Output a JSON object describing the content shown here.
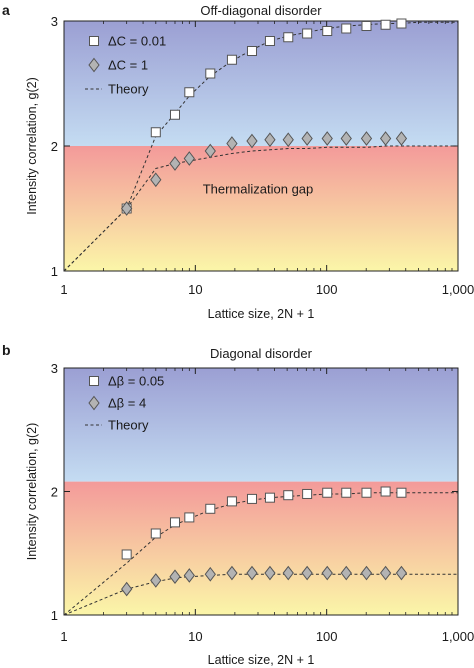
{
  "chart_data": [
    {
      "type": "scatter",
      "panel_label": "a",
      "title": "Off-diagonal disorder",
      "xlabel": "Lattice size, 2N + 1",
      "ylabel": "Intensity correlation, g(2)",
      "xscale": "log",
      "xlim": [
        1,
        1000
      ],
      "ylim": [
        1,
        3
      ],
      "xticks": [
        1,
        10,
        100,
        1000
      ],
      "xtick_labels": [
        "1",
        "10",
        "100",
        "1,000"
      ],
      "yticks": [
        1,
        2,
        3
      ],
      "ytick_labels": [
        "1",
        "2",
        "3"
      ],
      "shaded_regions": [
        {
          "y_from": 2,
          "y_to": 3,
          "colors": [
            "#c4dcf2",
            "#9b9fd3"
          ]
        },
        {
          "y_from": 1,
          "y_to": 2,
          "colors": [
            "#fbf6a8",
            "#f39a9a"
          ],
          "label": "Thermalization gap"
        }
      ],
      "legend_position": "top-left",
      "series": [
        {
          "name": "ΔC = 0.01",
          "marker": "square",
          "x": [
            3,
            5,
            7,
            9,
            13,
            19,
            27,
            37,
            51,
            71,
            101,
            141,
            201,
            281,
            371
          ],
          "y": [
            1.5,
            2.11,
            2.25,
            2.43,
            2.58,
            2.69,
            2.76,
            2.84,
            2.87,
            2.9,
            2.92,
            2.94,
            2.96,
            2.97,
            2.98
          ]
        },
        {
          "name": "ΔC = 1",
          "marker": "diamond",
          "x": [
            3,
            5,
            7,
            9,
            13,
            19,
            27,
            37,
            51,
            71,
            101,
            141,
            201,
            281,
            371
          ],
          "y": [
            1.5,
            1.73,
            1.86,
            1.9,
            1.96,
            2.02,
            2.04,
            2.05,
            2.05,
            2.06,
            2.06,
            2.06,
            2.06,
            2.06,
            2.06
          ]
        },
        {
          "name": "Theory",
          "style": "dashed",
          "x": [
            1,
            3,
            5,
            7,
            9,
            13,
            19,
            27,
            37,
            51,
            71,
            101,
            141,
            201,
            281,
            371,
            500,
            700,
            1000
          ],
          "y": [
            1.0,
            1.5,
            2.08,
            2.26,
            2.4,
            2.56,
            2.68,
            2.77,
            2.84,
            2.88,
            2.91,
            2.94,
            2.96,
            2.97,
            2.98,
            2.98,
            2.99,
            2.99,
            2.99
          ]
        },
        {
          "name": "",
          "style": "dashed",
          "x": [
            1,
            3,
            5,
            7,
            9,
            13,
            19,
            27,
            37,
            51,
            71,
            101,
            141,
            201,
            281,
            371,
            500,
            700,
            1000
          ],
          "y": [
            1.0,
            1.5,
            1.82,
            1.86,
            1.88,
            1.91,
            1.94,
            1.96,
            1.97,
            1.98,
            1.98,
            1.99,
            1.99,
            1.99,
            2.0,
            2.0,
            2.0,
            2.0,
            2.0
          ]
        }
      ]
    },
    {
      "type": "scatter",
      "panel_label": "b",
      "title": "Diagonal disorder",
      "xlabel": "Lattice size, 2N + 1",
      "ylabel": "Intensity correlation, g(2)",
      "xscale": "log",
      "xlim": [
        1,
        1000
      ],
      "ylim": [
        1,
        3
      ],
      "xticks": [
        1,
        10,
        100,
        1000
      ],
      "xtick_labels": [
        "1",
        "10",
        "100",
        "1,000"
      ],
      "yticks": [
        1,
        2,
        3
      ],
      "ytick_labels": [
        "1",
        "2",
        "3"
      ],
      "shaded_regions": [
        {
          "y_from": 2.08,
          "y_to": 3,
          "colors": [
            "#c4dcf2",
            "#9b9fd3"
          ]
        },
        {
          "y_from": 1,
          "y_to": 2.08,
          "colors": [
            "#fbf6a8",
            "#f39a9a"
          ]
        }
      ],
      "legend_position": "top-left",
      "series": [
        {
          "name": "Δβ = 0.05",
          "marker": "square",
          "x": [
            3,
            5,
            7,
            9,
            13,
            19,
            27,
            37,
            51,
            71,
            101,
            141,
            201,
            281,
            371
          ],
          "y": [
            1.49,
            1.66,
            1.75,
            1.79,
            1.86,
            1.92,
            1.94,
            1.95,
            1.97,
            1.98,
            1.99,
            1.99,
            1.99,
            2.0,
            1.99
          ]
        },
        {
          "name": "Δβ = 4",
          "marker": "diamond",
          "x": [
            3,
            5,
            7,
            9,
            13,
            19,
            27,
            37,
            51,
            71,
            101,
            141,
            201,
            281,
            371
          ],
          "y": [
            1.21,
            1.28,
            1.31,
            1.32,
            1.33,
            1.34,
            1.34,
            1.34,
            1.34,
            1.34,
            1.34,
            1.34,
            1.34,
            1.34,
            1.34
          ]
        },
        {
          "name": "Theory",
          "style": "dashed",
          "x": [
            1,
            3,
            5,
            7,
            9,
            13,
            19,
            27,
            37,
            51,
            71,
            101,
            141,
            201,
            281,
            371,
            500,
            700,
            1000
          ],
          "y": [
            1.0,
            1.42,
            1.63,
            1.73,
            1.78,
            1.85,
            1.9,
            1.93,
            1.95,
            1.96,
            1.97,
            1.98,
            1.98,
            1.99,
            1.99,
            1.99,
            1.99,
            1.99,
            1.99
          ]
        },
        {
          "name": "",
          "style": "dashed",
          "x": [
            1,
            3,
            5,
            7,
            9,
            13,
            19,
            27,
            37,
            51,
            71,
            101,
            141,
            201,
            281,
            371,
            500,
            700,
            1000
          ],
          "y": [
            1.0,
            1.21,
            1.27,
            1.3,
            1.31,
            1.32,
            1.33,
            1.33,
            1.33,
            1.33,
            1.33,
            1.33,
            1.33,
            1.33,
            1.33,
            1.33,
            1.33,
            1.33,
            1.33
          ]
        }
      ]
    }
  ]
}
